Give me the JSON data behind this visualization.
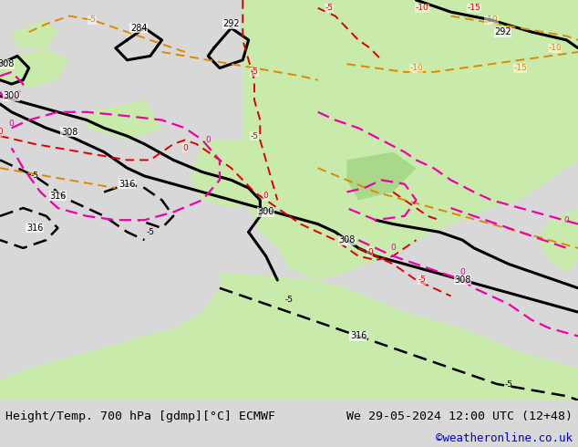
{
  "title_left": "Height/Temp. 700 hPa [gdmp][°C] ECMWF",
  "title_right": "We 29-05-2024 12:00 UTC (12+48)",
  "copyright": "©weatheronline.co.uk",
  "bg_color": "#d8d8d8",
  "land_green": "#c8eaaa",
  "land_green2": "#a8d888",
  "ocean_gray": "#c8c8c8",
  "bottom_bar_color": "#d8d8d8",
  "fig_width": 6.34,
  "fig_height": 4.9,
  "dpi": 100,
  "title_fontsize": 9.5,
  "copyright_fontsize": 9,
  "copyright_color": "#0000cc"
}
